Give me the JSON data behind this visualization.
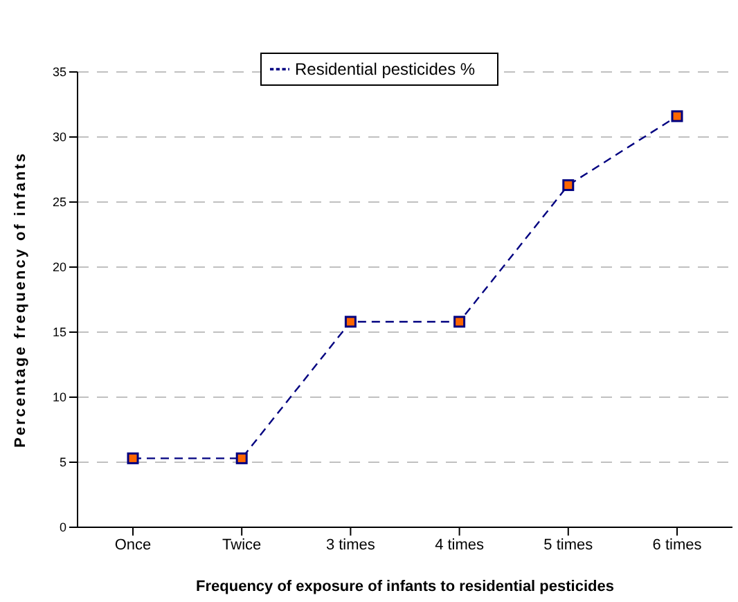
{
  "chart_data": {
    "type": "line",
    "xlabel": "Frequency of exposure of infants to residential pesticides",
    "ylabel": "Percentage frequency of infants",
    "categories": [
      "Once",
      "Twice",
      "3 times",
      "4 times",
      "5 times",
      "6 times"
    ],
    "series": [
      {
        "name": "Residential pesticides %",
        "color": "#000080",
        "values": [
          5.3,
          5.3,
          15.8,
          15.8,
          26.3,
          31.6
        ]
      }
    ],
    "ylim": [
      0,
      35
    ],
    "yticks": [
      0,
      5,
      10,
      15,
      20,
      25,
      30,
      35
    ],
    "grid": "y",
    "legend": "top",
    "marker": "square",
    "line_style": "dashed"
  }
}
